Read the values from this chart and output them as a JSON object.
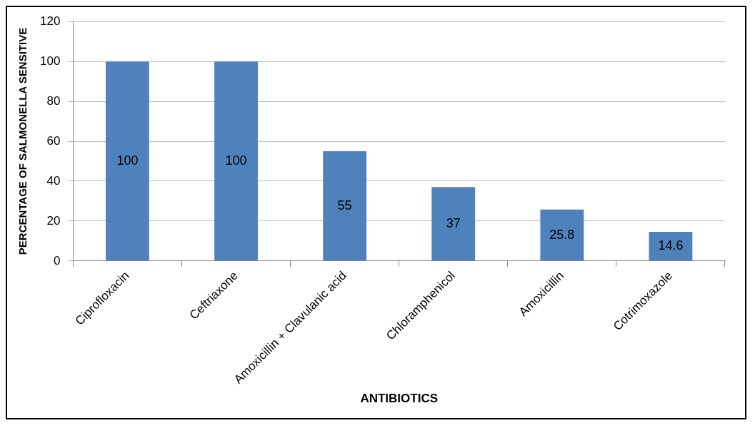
{
  "chart_data": {
    "type": "bar",
    "xlabel": "ANTIBIOTICS",
    "ylabel": "PERCENTAGE OF SALMONELLA SENSITIVE",
    "categories": [
      "Ciprofloxacin",
      "Ceftriaxone",
      "Amoxicillin + Clavulanic acid",
      "Chloramphenicol",
      "Amoxicillin",
      "Cotrimoxazole"
    ],
    "values": [
      100,
      100,
      55,
      37,
      25.8,
      14.6
    ],
    "color": "#4f81bd",
    "ylim": [
      0,
      120
    ],
    "yticks": [
      0,
      20,
      40,
      60,
      80,
      100,
      120
    ],
    "grid": "y",
    "data_labels": true
  }
}
